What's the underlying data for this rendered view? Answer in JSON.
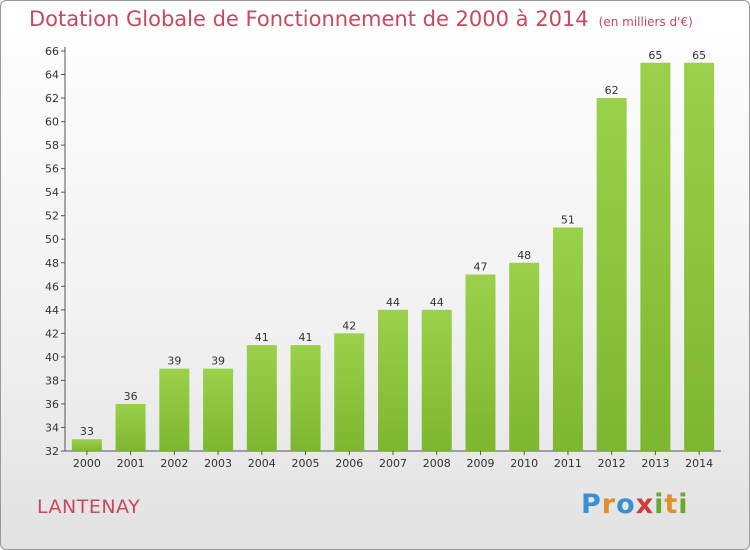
{
  "chart_data": {
    "type": "bar",
    "title": "Dotation Globale de Fonctionnement de 2000 à 2014",
    "subtitle": "(en milliers d'€)",
    "categories": [
      "2000",
      "2001",
      "2002",
      "2003",
      "2004",
      "2005",
      "2006",
      "2007",
      "2008",
      "2009",
      "2010",
      "2011",
      "2012",
      "2013",
      "2014"
    ],
    "values": [
      33,
      36,
      39,
      39,
      41,
      41,
      42,
      44,
      44,
      47,
      48,
      51,
      62,
      65,
      65
    ],
    "ylim": [
      32,
      66
    ],
    "yticks": [
      32,
      34,
      36,
      38,
      40,
      42,
      44,
      46,
      48,
      50,
      52,
      54,
      56,
      58,
      60,
      62,
      64,
      66
    ],
    "grid": false,
    "bar_color": "#7db72f",
    "bar_color_light": "#9bd14a"
  },
  "place_name": "LANTENAY",
  "logo": {
    "letters": [
      "P",
      "r",
      "o",
      "x",
      "i",
      "t",
      "i"
    ],
    "colors": [
      "#3a8fd0",
      "#e0902a",
      "#3a8fd0",
      "#d23b3b",
      "#6aa82e",
      "#e0902a",
      "#6aa82e"
    ]
  }
}
